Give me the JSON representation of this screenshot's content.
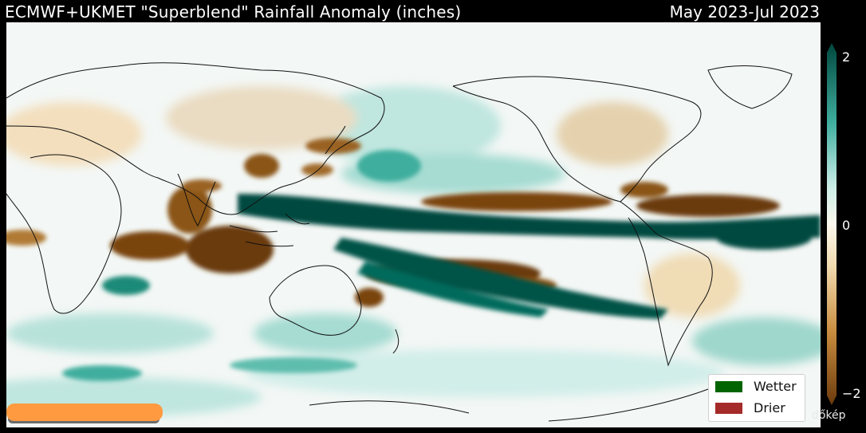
{
  "title": "ECMWF+UKMET \"Superblend\" Rainfall Anomaly (inches)",
  "period": "May 2023-Jul 2023",
  "colorbar": {
    "max_label": "2",
    "mid_label": "0",
    "min_label": "−2",
    "colors": {
      "wet": "#00473e",
      "wet_mid": "#3fae9e",
      "wet_light": "#cdeee8",
      "neutral": "#fbf8ee",
      "dry_light": "#f0d9ad",
      "dry_mid": "#c98b3e",
      "dry": "#6b3a0c"
    }
  },
  "legend": [
    {
      "label": "Wetter",
      "color": "#006400"
    },
    {
      "label": "Drier",
      "color": "#a52a2a"
    }
  ],
  "watermark": "dőkép"
}
